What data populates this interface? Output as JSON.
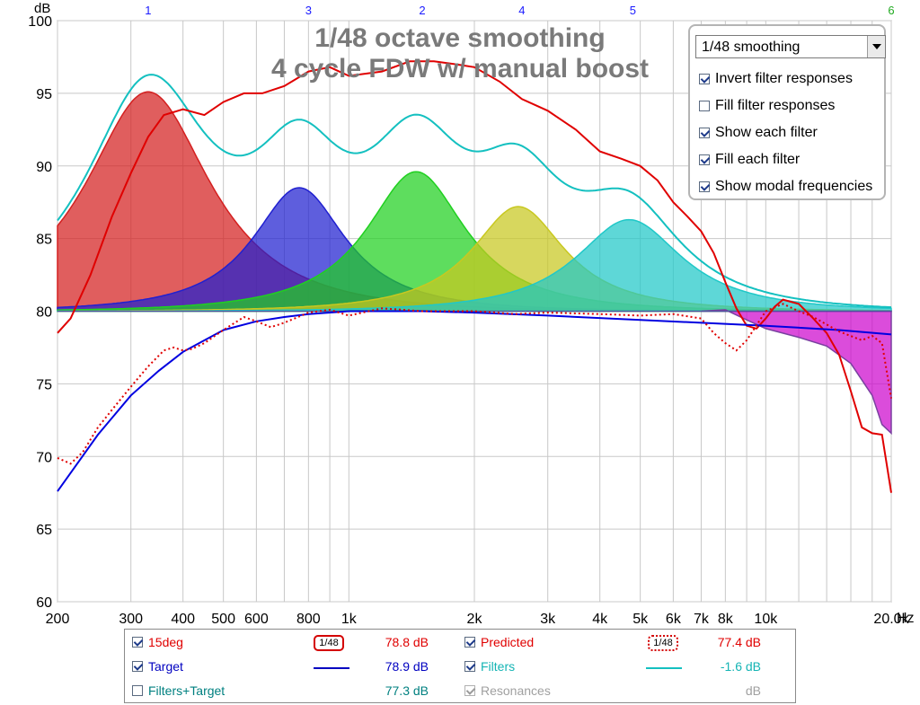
{
  "chart_data": {
    "type": "line",
    "title": "1/48 octave smoothing",
    "subtitle": "4 cycle FDW w/ manual boost",
    "ylabel": "dB",
    "xunit": "Hz",
    "xscale": "log",
    "xlim": [
      200,
      20000
    ],
    "ylim": [
      60,
      100
    ],
    "yticks": [
      60,
      65,
      70,
      75,
      80,
      85,
      90,
      95,
      100
    ],
    "xticks": [
      200,
      300,
      400,
      500,
      600,
      800,
      1000,
      2000,
      3000,
      4000,
      5000,
      6000,
      7000,
      8000,
      10000,
      20000
    ],
    "xtick_labels": [
      "200",
      "300",
      "400",
      "500",
      "600",
      "800",
      "1k",
      "2k",
      "3k",
      "4k",
      "5k",
      "6k",
      "7k",
      "8k",
      "10k",
      "20.0k"
    ],
    "grid": true,
    "modal_markers": [
      {
        "label": "1",
        "x": 330,
        "color": "#1a1aff"
      },
      {
        "label": "3",
        "x": 800,
        "color": "#1a1aff"
      },
      {
        "label": "2",
        "x": 1500,
        "color": "#1a1aff"
      },
      {
        "label": "4",
        "x": 2600,
        "color": "#1a1aff"
      },
      {
        "label": "5",
        "x": 4800,
        "color": "#1a1aff"
      },
      {
        "label": "6",
        "x": 20000,
        "color": "#22aa22"
      }
    ],
    "filters": [
      {
        "name": "1",
        "fc": 330,
        "gain": 15.1,
        "q": 1.2,
        "color": "#d42020"
      },
      {
        "name": "3",
        "fc": 760,
        "gain": 8.5,
        "q": 1.6,
        "color": "#2020d0"
      },
      {
        "name": "2",
        "fc": 1450,
        "gain": 9.6,
        "q": 1.5,
        "color": "#20d020"
      },
      {
        "name": "4",
        "fc": 2550,
        "gain": 7.2,
        "q": 1.6,
        "color": "#c8c820"
      },
      {
        "name": "5",
        "fc": 4700,
        "gain": 6.3,
        "q": 1.4,
        "color": "#20c8c8"
      }
    ],
    "series": [
      {
        "name": "15deg",
        "color": "#e00000",
        "style": "solid",
        "x": [
          200,
          215,
          240,
          270,
          300,
          330,
          360,
          400,
          450,
          500,
          560,
          620,
          700,
          800,
          900,
          1000,
          1200,
          1400,
          1600,
          1800,
          2000,
          2300,
          2600,
          3000,
          3500,
          4000,
          4500,
          5000,
          5500,
          6000,
          6500,
          7000,
          7500,
          8000,
          8500,
          9000,
          9500,
          10000,
          10500,
          11000,
          12000,
          13000,
          14000,
          15000,
          16000,
          17000,
          18000,
          19000,
          20000
        ],
        "y": [
          78.5,
          79.5,
          82.5,
          86.5,
          89.5,
          92,
          93.5,
          93.9,
          93.5,
          94.4,
          95,
          95,
          95.5,
          96.5,
          96.8,
          96.2,
          96.5,
          97.2,
          97.2,
          97,
          96.8,
          95.8,
          94.6,
          93.8,
          92.5,
          91,
          90.5,
          90,
          89,
          87.5,
          86.5,
          85.5,
          84,
          82,
          80.2,
          79,
          78.8,
          79.5,
          80.3,
          80.8,
          80.5,
          79.5,
          78.5,
          77,
          74.5,
          72,
          71.6,
          71.5,
          67.5
        ]
      },
      {
        "name": "Target",
        "color": "#0000e0",
        "style": "solid",
        "x": [
          200,
          250,
          300,
          350,
          400,
          500,
          600,
          700,
          800,
          1000,
          1500,
          2000,
          3000,
          5000,
          7000,
          10000,
          15000,
          20000
        ],
        "y": [
          67.6,
          71.5,
          74.2,
          75.9,
          77.2,
          78.7,
          79.3,
          79.6,
          79.8,
          80,
          80,
          79.9,
          79.7,
          79.4,
          79.2,
          79,
          78.7,
          78.4
        ]
      },
      {
        "name": "Predicted",
        "color": "#e00000",
        "style": "dotted",
        "x": [
          200,
          215,
          230,
          250,
          270,
          300,
          330,
          360,
          380,
          400,
          420,
          450,
          500,
          560,
          600,
          650,
          700,
          800,
          900,
          1000,
          1200,
          1500,
          2000,
          2500,
          3000,
          4000,
          5000,
          6000,
          7000,
          7500,
          8000,
          8500,
          9000,
          10000,
          11000,
          12000,
          13000,
          15000,
          17000,
          18000,
          19000,
          20000
        ],
        "y": [
          69.9,
          69.5,
          70.3,
          72,
          73.2,
          74.8,
          76.2,
          77.3,
          77.5,
          77.3,
          77.4,
          77.8,
          78.7,
          79.6,
          79.3,
          78.9,
          79.2,
          79.9,
          80.1,
          79.7,
          80.2,
          80,
          80,
          79.8,
          79.9,
          79.8,
          79.7,
          79.8,
          79.5,
          78.5,
          77.8,
          77.3,
          78,
          80,
          80.5,
          80,
          79.6,
          78.6,
          78,
          78.3,
          77.8,
          74
        ]
      },
      {
        "name": "Filters",
        "color": "#14c0c0",
        "style": "solid"
      }
    ],
    "filters_target": {
      "name": "Filters+Target",
      "fill": "#cc00cc"
    }
  },
  "panel": {
    "dropdown_value": "1/48 smoothing",
    "options": [
      {
        "label": "Invert filter responses",
        "checked": true
      },
      {
        "label": "Fill filter responses",
        "checked": false
      },
      {
        "label": "Show each filter",
        "checked": true
      },
      {
        "label": "Fill each filter",
        "checked": true
      },
      {
        "label": "Show modal frequencies",
        "checked": true
      }
    ]
  },
  "legend": {
    "rows": [
      {
        "name": "15deg",
        "checked": true,
        "color": "#e00000",
        "smoothing": "1/48",
        "value": "78.8 dB",
        "value_color": "#e00000"
      },
      {
        "name": "Target",
        "checked": true,
        "color": "#0000c0",
        "value": "78.9 dB",
        "value_color": "#0000c0"
      },
      {
        "name": "Filters+Target",
        "checked": false,
        "color": "#008080",
        "value": "77.3 dB",
        "value_color": "#008080"
      },
      {
        "name": "Predicted",
        "checked": true,
        "color": "#e00000",
        "smoothing": "1/48",
        "value": "77.4 dB",
        "value_color": "#e00000"
      },
      {
        "name": "Filters",
        "checked": true,
        "color": "#14b4b4",
        "value": "-1.6 dB",
        "value_color": "#14b4b4"
      },
      {
        "name": "Resonances",
        "checked": true,
        "disabled": true,
        "color": "#a0a0a0",
        "value": "dB",
        "value_color": "#a0a0a0"
      }
    ]
  }
}
